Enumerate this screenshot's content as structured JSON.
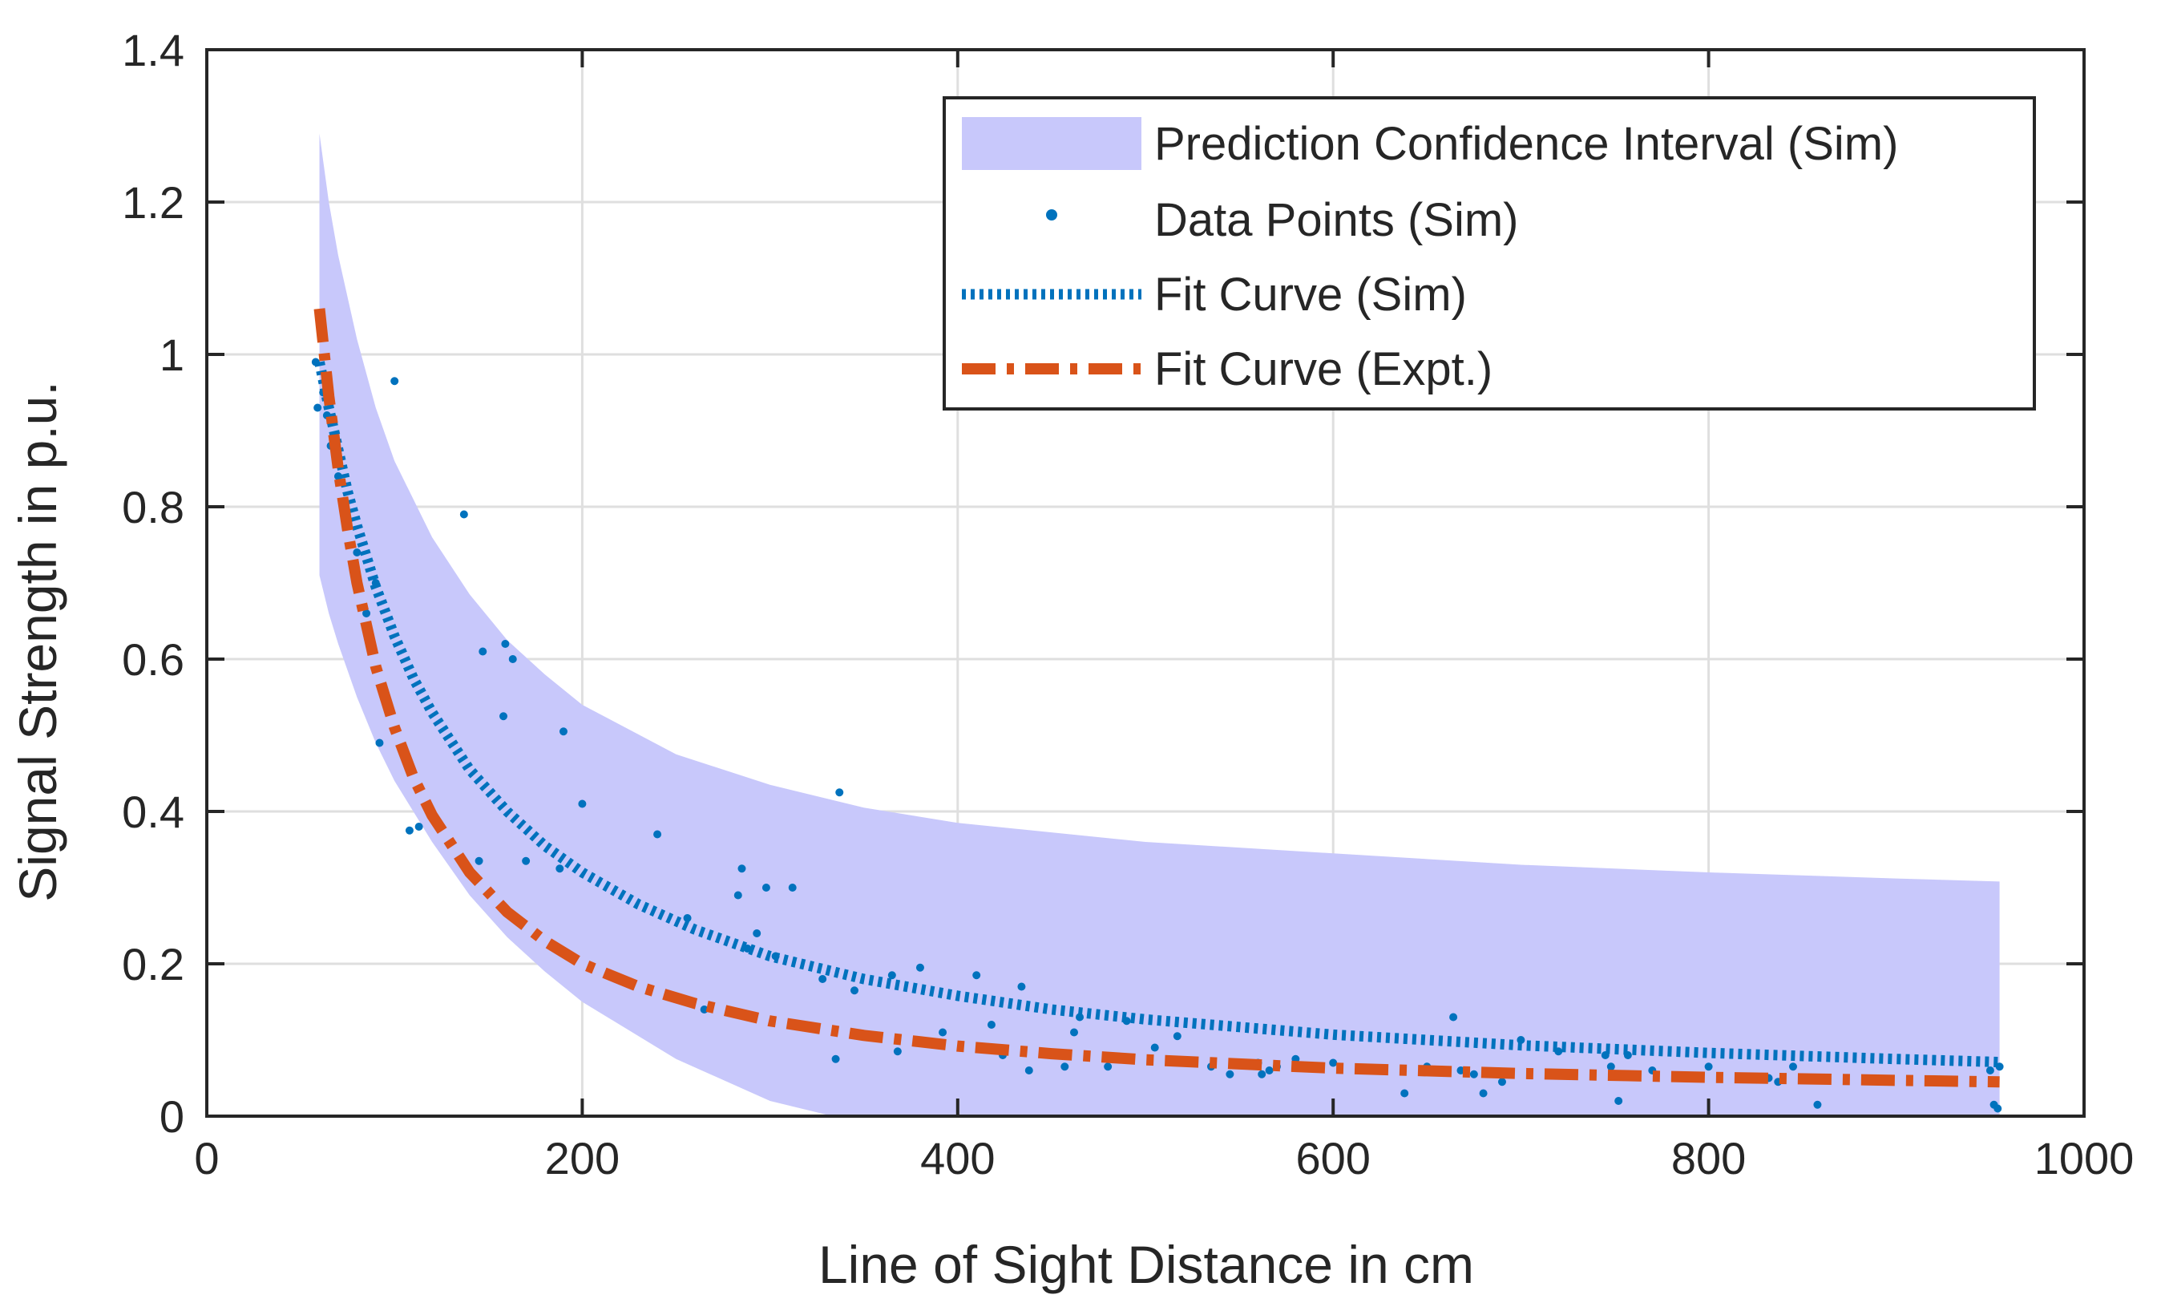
{
  "chart_data": {
    "type": "scatter",
    "xlabel": "Line of Sight Distance in cm",
    "ylabel": "Signal Strength in p.u.",
    "xlim": [
      0,
      1000
    ],
    "ylim": [
      0,
      1.4
    ],
    "xticks": [
      0,
      200,
      400,
      600,
      800,
      1000
    ],
    "xtick_labels": [
      "0",
      "200",
      "400",
      "600",
      "800",
      "1000"
    ],
    "yticks": [
      0,
      0.2,
      0.4,
      0.6,
      0.8,
      1.0,
      1.2,
      1.4
    ],
    "ytick_labels": [
      "0",
      "0.2",
      "0.4",
      "0.6",
      "0.8",
      "1",
      "1.2",
      "1.4"
    ],
    "grid": true,
    "legend_position": "top-right",
    "legend": [
      "Prediction Confidence Interval (Sim)",
      "Data Points (Sim)",
      "Fit Curve (Sim)",
      "Fit Curve (Expt.)"
    ],
    "colors": {
      "band": "#c8c8fb",
      "points": "#0072bd",
      "fit_sim": "#0072bd",
      "fit_expt": "#d95319"
    },
    "series": [
      {
        "name": "Prediction Confidence Interval (Sim)",
        "kind": "band",
        "x": [
          60,
          65,
          70,
          80,
          90,
          100,
          120,
          140,
          160,
          180,
          200,
          250,
          300,
          350,
          400,
          500,
          600,
          700,
          800,
          900,
          955
        ],
        "upper": [
          1.29,
          1.2,
          1.13,
          1.02,
          0.93,
          0.86,
          0.76,
          0.685,
          0.625,
          0.58,
          0.54,
          0.475,
          0.435,
          0.405,
          0.385,
          0.36,
          0.345,
          0.33,
          0.32,
          0.312,
          0.308
        ],
        "lower": [
          0.71,
          0.66,
          0.62,
          0.55,
          0.49,
          0.44,
          0.36,
          0.29,
          0.235,
          0.19,
          0.15,
          0.075,
          0.02,
          -0.01,
          -0.03,
          -0.05,
          -0.06,
          -0.07,
          -0.08,
          -0.085,
          -0.09
        ]
      },
      {
        "name": "Data Points (Sim)",
        "kind": "points",
        "x": [
          58,
          59,
          62,
          64,
          66,
          70,
          75,
          80,
          85,
          90,
          92,
          100,
          108,
          113,
          137,
          145,
          147,
          158,
          159,
          163,
          170,
          188,
          190,
          200,
          240,
          256,
          265,
          283,
          285,
          288,
          293,
          298,
          303,
          312,
          328,
          335,
          337,
          345,
          365,
          368,
          380,
          392,
          410,
          418,
          424,
          434,
          438,
          457,
          462,
          465,
          480,
          490,
          505,
          517,
          535,
          545,
          560,
          562,
          566,
          570,
          580,
          600,
          620,
          638,
          650,
          664,
          668,
          675,
          680,
          690,
          700,
          720,
          745,
          748,
          752,
          757,
          770,
          800,
          832,
          837,
          845,
          858,
          950,
          952,
          954,
          955
        ],
        "y": [
          0.99,
          0.93,
          0.95,
          0.92,
          0.88,
          0.84,
          0.78,
          0.74,
          0.66,
          0.7,
          0.49,
          0.965,
          0.375,
          0.38,
          0.79,
          0.335,
          0.61,
          0.525,
          0.62,
          0.6,
          0.335,
          0.325,
          0.505,
          0.41,
          0.37,
          0.26,
          0.14,
          0.29,
          0.325,
          0.22,
          0.24,
          0.3,
          0.21,
          0.3,
          0.18,
          0.075,
          0.425,
          0.165,
          0.185,
          0.085,
          0.195,
          0.11,
          0.185,
          0.12,
          0.08,
          0.17,
          0.06,
          0.065,
          0.11,
          0.13,
          0.065,
          0.125,
          0.09,
          0.105,
          0.065,
          0.055,
          0.07,
          0.055,
          0.06,
          0.065,
          0.075,
          0.07,
          0.06,
          0.03,
          0.065,
          0.13,
          0.06,
          0.055,
          0.03,
          0.045,
          0.1,
          0.085,
          0.08,
          0.065,
          0.02,
          0.08,
          0.06,
          0.065,
          0.05,
          0.045,
          0.065,
          0.015,
          0.06,
          0.015,
          0.01,
          0.065
        ]
      },
      {
        "name": "Fit Curve (Sim)",
        "kind": "line",
        "style": "dotted",
        "x": [
          60,
          65,
          70,
          75,
          80,
          90,
          100,
          110,
          120,
          140,
          160,
          180,
          200,
          230,
          260,
          300,
          350,
          400,
          450,
          500,
          600,
          700,
          800,
          900,
          955
        ],
        "y": [
          0.99,
          0.93,
          0.875,
          0.82,
          0.775,
          0.695,
          0.63,
          0.575,
          0.53,
          0.455,
          0.4,
          0.355,
          0.32,
          0.278,
          0.245,
          0.21,
          0.18,
          0.158,
          0.14,
          0.127,
          0.107,
          0.093,
          0.083,
          0.075,
          0.071
        ]
      },
      {
        "name": "Fit Curve (Expt.)",
        "kind": "line",
        "style": "dashdot",
        "x": [
          60,
          65,
          70,
          75,
          80,
          90,
          100,
          110,
          120,
          140,
          160,
          180,
          200,
          230,
          260,
          300,
          350,
          400,
          450,
          500,
          600,
          700,
          800,
          900,
          955
        ],
        "y": [
          1.06,
          0.945,
          0.85,
          0.77,
          0.7,
          0.59,
          0.51,
          0.445,
          0.395,
          0.32,
          0.268,
          0.23,
          0.2,
          0.17,
          0.148,
          0.125,
          0.106,
          0.092,
          0.082,
          0.074,
          0.063,
          0.056,
          0.051,
          0.047,
          0.045
        ]
      }
    ]
  }
}
